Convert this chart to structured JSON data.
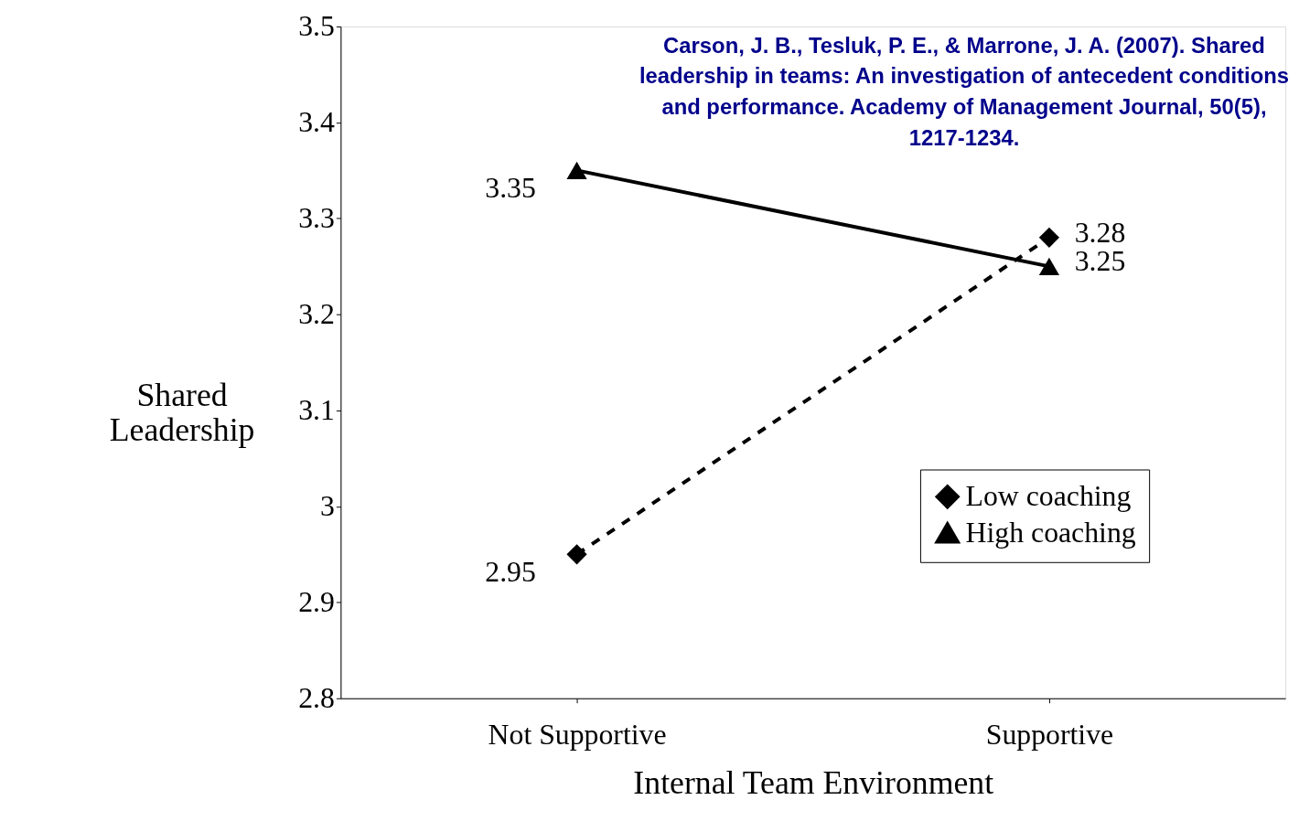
{
  "chart_data": {
    "type": "line",
    "xlabel": "Internal Team Environment",
    "ylabel": "Shared Leadership",
    "categories": [
      "Not Supportive",
      "Supportive"
    ],
    "series": [
      {
        "name": "Low coaching",
        "color": "#000000",
        "values": [
          2.95,
          3.28
        ],
        "marker": "diamond",
        "line_style": "dashed"
      },
      {
        "name": "High coaching",
        "color": "#000000",
        "values": [
          3.35,
          3.25
        ],
        "marker": "triangle",
        "line_style": "solid"
      }
    ],
    "ylim": [
      2.8,
      3.5
    ],
    "yticks": [
      2.8,
      2.9,
      3,
      3.1,
      3.2,
      3.3,
      3.4,
      3.5
    ],
    "data_labels": true,
    "grid": false,
    "legend": "bottom right",
    "annotations": [
      "Carson, J. B., Tesluk, P. E., & Marrone, J. A. (2007). Shared leadership in teams: An investigation of antecedent conditions and performance. Academy of Management Journal, 50(5), 1217-1234."
    ]
  }
}
